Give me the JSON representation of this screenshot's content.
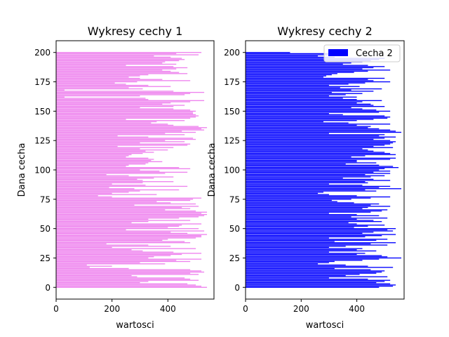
{
  "chart_data": [
    {
      "type": "bar",
      "orientation": "horizontal",
      "title": "Wykresy cechy 1",
      "xlabel": "wartosci",
      "ylabel": "Dana cecha",
      "xlim": [
        0,
        565
      ],
      "ylim": [
        -10,
        210
      ],
      "xticks": [
        "0",
        "200",
        "400"
      ],
      "yticks": [
        "0",
        "25",
        "50",
        "75",
        "100",
        "125",
        "150",
        "175",
        "200"
      ],
      "bar_color": "#ee82ee",
      "legend": null,
      "series": [
        {
          "name": "",
          "y_start": 0,
          "values": [
            540,
            520,
            500,
            470,
            300,
            330,
            510,
            480,
            460,
            290,
            270,
            510,
            480,
            530,
            520,
            480,
            260,
            120,
            200,
            110,
            390,
            300,
            480,
            430,
            520,
            330,
            350,
            410,
            450,
            520,
            420,
            310,
            270,
            500,
            200,
            410,
            330,
            180,
            480,
            460,
            380,
            400,
            500,
            520,
            520,
            540,
            470,
            410,
            530,
            250,
            510,
            400,
            440,
            450,
            520,
            270,
            330,
            480,
            330,
            440,
            510,
            530,
            540,
            520,
            540,
            500,
            390,
            480,
            450,
            510,
            280,
            500,
            410,
            360,
            480,
            490,
            520,
            200,
            150,
            360,
            200,
            260,
            300,
            440,
            280,
            190,
            470,
            320,
            200,
            310,
            420,
            310,
            290,
            350,
            420,
            260,
            180,
            390,
            470,
            370,
            300,
            480,
            440,
            250,
            260,
            320,
            330,
            380,
            340,
            350,
            330,
            250,
            260,
            270,
            310,
            350,
            320,
            400,
            300,
            420,
            220,
            470,
            480,
            300,
            460,
            390,
            500,
            490,
            330,
            220,
            460,
            390,
            500,
            450,
            530,
            520,
            540,
            510,
            420,
            400,
            340,
            360,
            460,
            250,
            480,
            500,
            510,
            500,
            490,
            490,
            500,
            480,
            420,
            300,
            420,
            460,
            380,
            410,
            480,
            530,
            330,
            320,
            30,
            300,
            460,
            480,
            530,
            420,
            30,
            310,
            260,
            410,
            330,
            250,
            210,
            290,
            480,
            380,
            300,
            260,
            300,
            330,
            470,
            440,
            410,
            380,
            430,
            470,
            420,
            250,
            430,
            380,
            390,
            440,
            460,
            450,
            410,
            350,
            510,
            430,
            520
          ]
        }
      ]
    },
    {
      "type": "bar",
      "orientation": "horizontal",
      "title": "Wykresy cechy 2",
      "xlabel": "wartosci",
      "ylabel": "Dana cecha",
      "xlim": [
        0,
        570
      ],
      "ylim": [
        -10,
        210
      ],
      "xticks": [
        "0",
        "200",
        "400"
      ],
      "yticks": [
        "0",
        "25",
        "50",
        "75",
        "100",
        "125",
        "150",
        "175",
        "200"
      ],
      "bar_color": "#0000ff",
      "legend": {
        "position": "top-right",
        "entries": [
          "Cecha 2"
        ]
      },
      "series": [
        {
          "name": "Cecha 2",
          "y_start": 0,
          "values": [
            480,
            530,
            540,
            520,
            470,
            500,
            520,
            440,
            300,
            510,
            360,
            410,
            470,
            490,
            500,
            450,
            320,
            530,
            440,
            360,
            260,
            300,
            320,
            420,
            480,
            560,
            510,
            490,
            400,
            430,
            300,
            470,
            400,
            420,
            300,
            360,
            510,
            450,
            540,
            320,
            470,
            510,
            300,
            430,
            490,
            540,
            420,
            460,
            530,
            510,
            540,
            390,
            440,
            500,
            400,
            370,
            490,
            460,
            400,
            510,
            380,
            480,
            400,
            300,
            450,
            490,
            510,
            420,
            440,
            520,
            450,
            480,
            390,
            330,
            310,
            380,
            450,
            520,
            400,
            300,
            260,
            280,
            470,
            430,
            560,
            480,
            520,
            420,
            300,
            440,
            430,
            520,
            460,
            350,
            450,
            500,
            430,
            520,
            460,
            520,
            480,
            500,
            550,
            530,
            480,
            360,
            470,
            400,
            400,
            520,
            540,
            380,
            430,
            540,
            520,
            500,
            460,
            440,
            420,
            530,
            460,
            500,
            520,
            530,
            540,
            520,
            460,
            500,
            540,
            480,
            500,
            300,
            560,
            540,
            520,
            480,
            440,
            450,
            400,
            520,
            370,
            280,
            400,
            460,
            510,
            520,
            500,
            350,
            300,
            480,
            520,
            470,
            420,
            380,
            500,
            460,
            450,
            400,
            420,
            490,
            400,
            350,
            400,
            300,
            360,
            420,
            310,
            460,
            380,
            490,
            340,
            410,
            300,
            370,
            430,
            520,
            460,
            440,
            500,
            280,
            290,
            310,
            330,
            390,
            440,
            520,
            420,
            460,
            500,
            440,
            350,
            380,
            420,
            450,
            480,
            500,
            320,
            260,
            300,
            360,
            160
          ]
        }
      ]
    }
  ]
}
